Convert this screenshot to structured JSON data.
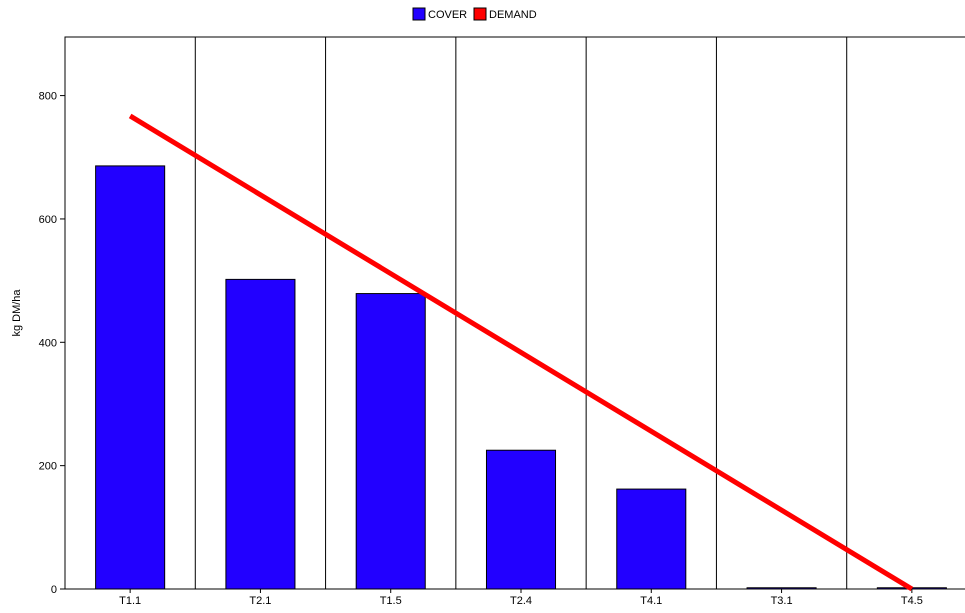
{
  "chart_data": {
    "type": "bar",
    "title": "",
    "xlabel": "",
    "ylabel": "kg DM/ha",
    "ylim": [
      0,
      895
    ],
    "yticks": [
      0,
      200,
      400,
      600,
      800
    ],
    "categories": [
      "T1.1",
      "T2.1",
      "T1.5",
      "T2.4",
      "T4.1",
      "T3.1",
      "T4.5"
    ],
    "series": [
      {
        "name": "COVER",
        "kind": "bar",
        "color": "#2200ff",
        "values": [
          686,
          502,
          479,
          225,
          162,
          2,
          2
        ]
      },
      {
        "name": "DEMAND",
        "kind": "line",
        "color": "#ff0000",
        "values": [
          767,
          null,
          null,
          null,
          null,
          null,
          0
        ]
      }
    ],
    "legend": "top-center",
    "grid": "vertical category separators"
  }
}
